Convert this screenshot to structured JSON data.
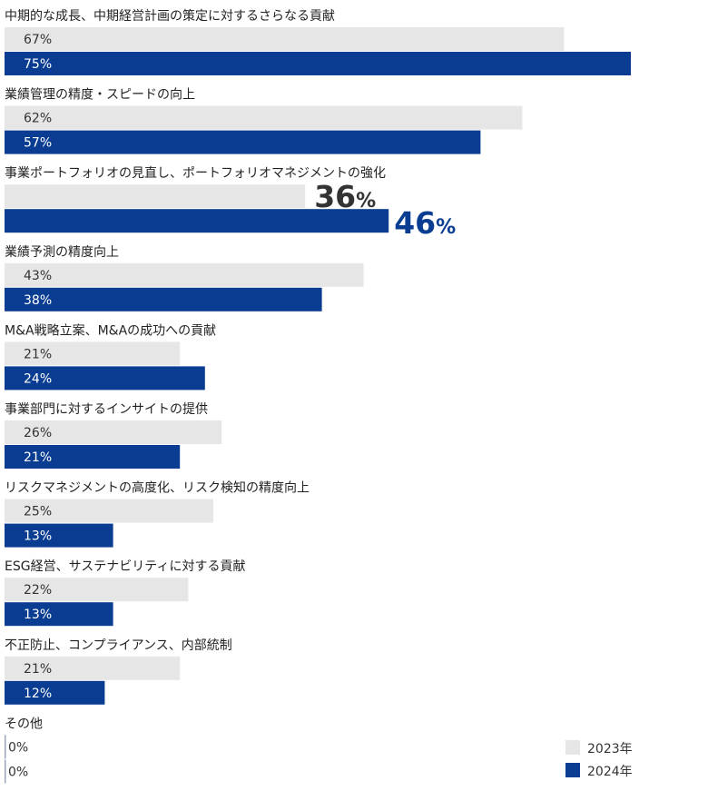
{
  "chart_data": {
    "type": "bar",
    "orientation": "horizontal",
    "categories": [
      "中期的な成長、中期経営計画の策定に対するさらなる貢献",
      "業績管理の精度・スピードの向上",
      "事業ポートフォリオの見直し、ポートフォリオマネジメントの強化",
      "業績予測の精度向上",
      "M&A戦略立案、M&Aの成功への貢献",
      "事業部門に対するインサイトの提供",
      "リスクマネジメントの高度化、リスク検知の精度向上",
      "ESG経営、サステナビリティに対する貢献",
      "不正防止、コンプライアンス、内部統制",
      "その他"
    ],
    "series": [
      {
        "name": "2023年",
        "color": "#e6e6e6",
        "values": [
          67,
          62,
          36,
          43,
          21,
          26,
          25,
          22,
          21,
          0
        ],
        "labels": [
          "67%",
          "62%",
          "36",
          "43%",
          "21%",
          "26%",
          "25%",
          "22%",
          "21%",
          "0%"
        ]
      },
      {
        "name": "2024年",
        "color": "#0a3d91",
        "values": [
          75,
          57,
          46,
          38,
          24,
          21,
          13,
          13,
          12,
          0
        ],
        "labels": [
          "75%",
          "57%",
          "46",
          "38%",
          "24%",
          "21%",
          "13%",
          "13%",
          "12%",
          "0%"
        ]
      }
    ],
    "highlight_category_index": 2,
    "highlight_percent_sign": "%",
    "xlim": [
      0,
      100
    ],
    "legend": {
      "position": "bottom-right"
    },
    "grid": false
  }
}
